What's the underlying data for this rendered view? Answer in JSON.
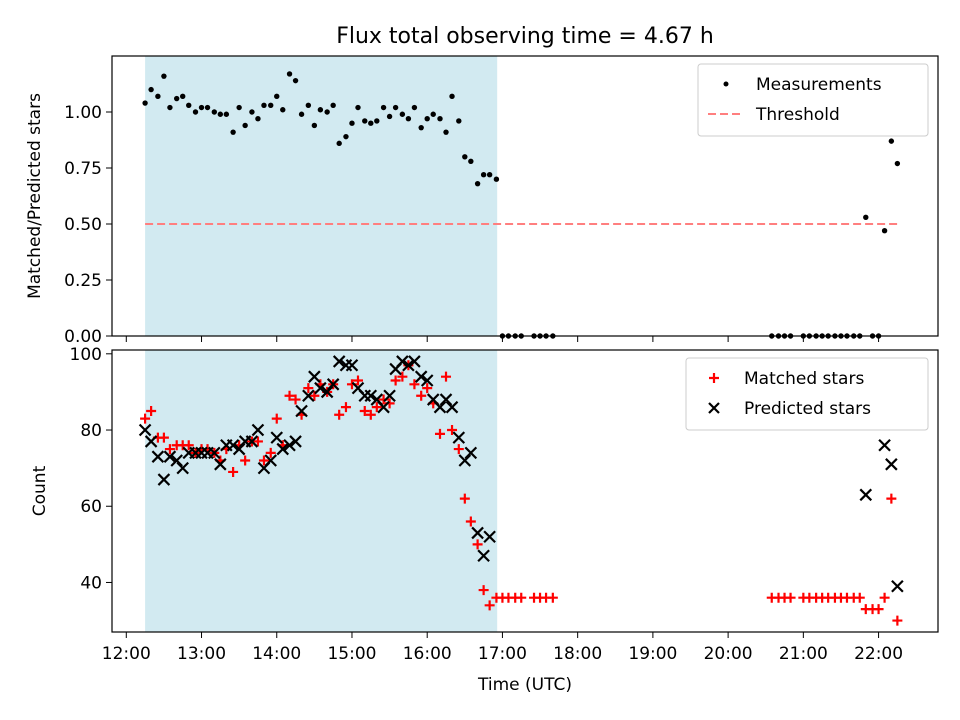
{
  "title": "Flux total observing time = 4.67 h",
  "chart_data": [
    {
      "type": "scatter",
      "ylabel": "Matched/Predicted stars",
      "xlabel": "",
      "ylim": [
        0.0,
        1.25
      ],
      "xlim": [
        11.81,
        22.79
      ],
      "yticks": [
        0.0,
        0.25,
        0.5,
        0.75,
        1.0
      ],
      "ytick_labels": [
        "0.00",
        "0.25",
        "0.50",
        "0.75",
        "1.00"
      ],
      "shaded_span": {
        "x0": 12.25,
        "x1": 16.93,
        "color": "#add8e6"
      },
      "legend_position": "upper right",
      "threshold": {
        "name": "Threshold",
        "y": 0.5,
        "x0": 12.25,
        "x1": 22.25,
        "color": "#ff7f7f"
      },
      "series": [
        {
          "name": "Measurements",
          "color": "#000000",
          "marker": "dot",
          "points": [
            [
              12.25,
              1.04
            ],
            [
              12.33,
              1.1
            ],
            [
              12.42,
              1.07
            ],
            [
              12.5,
              1.16
            ],
            [
              12.58,
              1.02
            ],
            [
              12.67,
              1.06
            ],
            [
              12.75,
              1.07
            ],
            [
              12.83,
              1.03
            ],
            [
              12.92,
              1.0
            ],
            [
              13.0,
              1.02
            ],
            [
              13.08,
              1.02
            ],
            [
              13.17,
              1.0
            ],
            [
              13.25,
              0.99
            ],
            [
              13.33,
              0.99
            ],
            [
              13.42,
              0.91
            ],
            [
              13.5,
              1.02
            ],
            [
              13.58,
              0.94
            ],
            [
              13.67,
              1.0
            ],
            [
              13.75,
              0.97
            ],
            [
              13.83,
              1.03
            ],
            [
              13.92,
              1.03
            ],
            [
              14.0,
              1.07
            ],
            [
              14.08,
              1.01
            ],
            [
              14.17,
              1.17
            ],
            [
              14.25,
              1.14
            ],
            [
              14.33,
              0.99
            ],
            [
              14.42,
              1.03
            ],
            [
              14.5,
              0.94
            ],
            [
              14.58,
              1.01
            ],
            [
              14.67,
              1.0
            ],
            [
              14.75,
              1.03
            ],
            [
              14.83,
              0.86
            ],
            [
              14.92,
              0.89
            ],
            [
              15.0,
              0.95
            ],
            [
              15.08,
              1.02
            ],
            [
              15.17,
              0.96
            ],
            [
              15.25,
              0.95
            ],
            [
              15.33,
              0.96
            ],
            [
              15.42,
              1.02
            ],
            [
              15.5,
              0.98
            ],
            [
              15.58,
              1.02
            ],
            [
              15.67,
              0.99
            ],
            [
              15.75,
              0.97
            ],
            [
              15.83,
              1.02
            ],
            [
              15.92,
              0.93
            ],
            [
              16.0,
              0.97
            ],
            [
              16.08,
              0.99
            ],
            [
              16.17,
              0.97
            ],
            [
              16.25,
              0.91
            ],
            [
              16.33,
              1.07
            ],
            [
              16.42,
              0.96
            ],
            [
              16.5,
              0.8
            ],
            [
              16.58,
              0.78
            ],
            [
              16.67,
              0.68
            ],
            [
              16.75,
              0.72
            ],
            [
              16.83,
              0.72
            ],
            [
              16.92,
              0.7
            ],
            [
              17.0,
              0.0
            ],
            [
              17.08,
              0.0
            ],
            [
              17.17,
              0.0
            ],
            [
              17.25,
              0.0
            ],
            [
              17.42,
              0.0
            ],
            [
              17.5,
              0.0
            ],
            [
              17.58,
              0.0
            ],
            [
              17.67,
              0.0
            ],
            [
              20.58,
              0.0
            ],
            [
              20.67,
              0.0
            ],
            [
              20.75,
              0.0
            ],
            [
              20.83,
              0.0
            ],
            [
              21.0,
              0.0
            ],
            [
              21.08,
              0.0
            ],
            [
              21.17,
              0.0
            ],
            [
              21.25,
              0.0
            ],
            [
              21.33,
              0.0
            ],
            [
              21.42,
              0.0
            ],
            [
              21.5,
              0.0
            ],
            [
              21.58,
              0.0
            ],
            [
              21.67,
              0.0
            ],
            [
              21.75,
              0.0
            ],
            [
              21.92,
              0.0
            ],
            [
              22.0,
              0.0
            ],
            [
              21.83,
              0.53
            ],
            [
              22.08,
              0.47
            ],
            [
              22.17,
              0.87
            ],
            [
              22.25,
              0.77
            ]
          ]
        }
      ]
    },
    {
      "type": "scatter",
      "ylabel": "Count",
      "xlabel": "Time (UTC)",
      "ylim": [
        27,
        101
      ],
      "xlim": [
        11.81,
        22.79
      ],
      "yticks": [
        40,
        60,
        80,
        100
      ],
      "ytick_labels": [
        "40",
        "60",
        "80",
        "100"
      ],
      "xticks": [
        12,
        13,
        14,
        15,
        16,
        17,
        18,
        19,
        20,
        21,
        22
      ],
      "xtick_labels": [
        "12:00",
        "13:00",
        "14:00",
        "15:00",
        "16:00",
        "17:00",
        "18:00",
        "19:00",
        "20:00",
        "21:00",
        "22:00"
      ],
      "shaded_span": {
        "x0": 12.25,
        "x1": 16.93,
        "color": "#add8e6"
      },
      "legend_position": "upper right",
      "series": [
        {
          "name": "Matched stars",
          "color": "#ff0000",
          "marker": "plus",
          "points": [
            [
              12.25,
              83
            ],
            [
              12.33,
              85
            ],
            [
              12.42,
              78
            ],
            [
              12.5,
              78
            ],
            [
              12.58,
              75
            ],
            [
              12.67,
              76
            ],
            [
              12.75,
              76
            ],
            [
              12.83,
              76
            ],
            [
              12.92,
              74
            ],
            [
              13.0,
              75
            ],
            [
              13.08,
              75
            ],
            [
              13.17,
              74
            ],
            [
              13.25,
              72
            ],
            [
              13.33,
              75
            ],
            [
              13.42,
              69
            ],
            [
              13.5,
              76
            ],
            [
              13.58,
              72
            ],
            [
              13.67,
              77
            ],
            [
              13.75,
              77
            ],
            [
              13.83,
              72
            ],
            [
              13.92,
              74
            ],
            [
              14.0,
              83
            ],
            [
              14.08,
              76
            ],
            [
              14.17,
              89
            ],
            [
              14.25,
              88
            ],
            [
              14.33,
              84
            ],
            [
              14.42,
              91
            ],
            [
              14.5,
              89
            ],
            [
              14.58,
              92
            ],
            [
              14.67,
              90
            ],
            [
              14.75,
              92
            ],
            [
              14.83,
              84
            ],
            [
              14.92,
              86
            ],
            [
              15.0,
              92
            ],
            [
              15.08,
              93
            ],
            [
              15.17,
              85
            ],
            [
              15.25,
              84
            ],
            [
              15.33,
              86
            ],
            [
              15.42,
              88
            ],
            [
              15.5,
              87
            ],
            [
              15.58,
              93
            ],
            [
              15.67,
              94
            ],
            [
              15.75,
              97
            ],
            [
              15.83,
              92
            ],
            [
              15.92,
              89
            ],
            [
              16.0,
              91
            ],
            [
              16.08,
              87
            ],
            [
              16.17,
              79
            ],
            [
              16.25,
              94
            ],
            [
              16.33,
              80
            ],
            [
              16.42,
              75
            ],
            [
              16.5,
              62
            ],
            [
              16.58,
              56
            ],
            [
              16.67,
              50
            ],
            [
              16.75,
              38
            ],
            [
              16.83,
              34
            ],
            [
              16.92,
              36
            ],
            [
              17.0,
              36
            ],
            [
              17.08,
              36
            ],
            [
              17.17,
              36
            ],
            [
              17.25,
              36
            ],
            [
              17.42,
              36
            ],
            [
              17.5,
              36
            ],
            [
              17.58,
              36
            ],
            [
              17.67,
              36
            ],
            [
              20.58,
              36
            ],
            [
              20.67,
              36
            ],
            [
              20.75,
              36
            ],
            [
              20.83,
              36
            ],
            [
              21.0,
              36
            ],
            [
              21.08,
              36
            ],
            [
              21.17,
              36
            ],
            [
              21.25,
              36
            ],
            [
              21.33,
              36
            ],
            [
              21.42,
              36
            ],
            [
              21.5,
              36
            ],
            [
              21.58,
              36
            ],
            [
              21.67,
              36
            ],
            [
              21.75,
              36
            ],
            [
              21.83,
              33
            ],
            [
              21.92,
              33
            ],
            [
              22.0,
              33
            ],
            [
              22.08,
              36
            ],
            [
              22.17,
              62
            ],
            [
              22.25,
              30
            ]
          ]
        },
        {
          "name": "Predicted stars",
          "color": "#000000",
          "marker": "x",
          "points": [
            [
              12.25,
              80
            ],
            [
              12.33,
              77
            ],
            [
              12.42,
              73
            ],
            [
              12.5,
              67
            ],
            [
              12.58,
              73
            ],
            [
              12.67,
              72
            ],
            [
              12.75,
              70
            ],
            [
              12.83,
              74
            ],
            [
              12.92,
              74
            ],
            [
              13.0,
              74
            ],
            [
              13.08,
              74
            ],
            [
              13.17,
              74
            ],
            [
              13.25,
              71
            ],
            [
              13.33,
              76
            ],
            [
              13.42,
              76
            ],
            [
              13.5,
              75
            ],
            [
              13.58,
              77
            ],
            [
              13.67,
              77
            ],
            [
              13.75,
              80
            ],
            [
              13.83,
              70
            ],
            [
              13.92,
              72
            ],
            [
              14.0,
              78
            ],
            [
              14.08,
              75
            ],
            [
              14.17,
              76
            ],
            [
              14.25,
              77
            ],
            [
              14.33,
              85
            ],
            [
              14.42,
              89
            ],
            [
              14.5,
              94
            ],
            [
              14.58,
              91
            ],
            [
              14.67,
              90
            ],
            [
              14.75,
              92
            ],
            [
              14.83,
              98
            ],
            [
              14.92,
              97
            ],
            [
              15.0,
              97
            ],
            [
              15.08,
              91
            ],
            [
              15.17,
              89
            ],
            [
              15.25,
              89
            ],
            [
              15.33,
              88
            ],
            [
              15.42,
              86
            ],
            [
              15.5,
              89
            ],
            [
              15.58,
              96
            ],
            [
              15.67,
              98
            ],
            [
              15.75,
              97
            ],
            [
              15.83,
              98
            ],
            [
              15.92,
              94
            ],
            [
              16.0,
              93
            ],
            [
              16.08,
              88
            ],
            [
              16.17,
              86
            ],
            [
              16.25,
              88
            ],
            [
              16.33,
              86
            ],
            [
              16.42,
              78
            ],
            [
              16.5,
              72
            ],
            [
              16.58,
              74
            ],
            [
              16.67,
              53
            ],
            [
              16.75,
              47
            ],
            [
              16.83,
              52
            ],
            [
              21.83,
              63
            ],
            [
              22.08,
              76
            ],
            [
              22.17,
              71
            ],
            [
              22.25,
              39
            ]
          ]
        }
      ]
    }
  ]
}
